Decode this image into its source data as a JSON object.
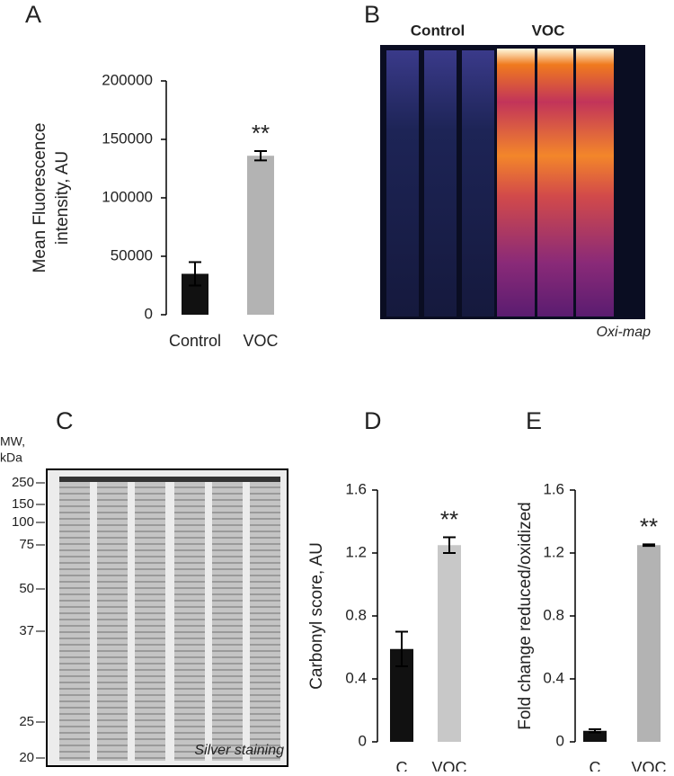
{
  "chart_data": [
    {
      "type": "bar",
      "panel": "A",
      "y_label": [
        "Mean Fluorescence",
        "intensity, AU"
      ],
      "categories": [
        "Control",
        "VOC"
      ],
      "values": [
        35000,
        136000
      ],
      "errors": [
        10000,
        4000
      ],
      "colors": [
        "#111111",
        "#b3b3b3"
      ],
      "annotations": [
        null,
        "**"
      ],
      "ylim": [
        0,
        200000
      ],
      "yticks": [
        0,
        50000,
        100000,
        150000,
        200000
      ]
    },
    {
      "type": "bar",
      "panel": "D",
      "y_label": [
        "Carbonyl score, AU"
      ],
      "categories": [
        "C",
        "VOC"
      ],
      "values": [
        0.59,
        1.25
      ],
      "errors": [
        0.11,
        0.05
      ],
      "colors": [
        "#111111",
        "#c8c8c8"
      ],
      "annotations": [
        null,
        "**"
      ],
      "ylim": [
        0,
        1.6
      ],
      "yticks": [
        0,
        0.4,
        0.8,
        1.2,
        1.6
      ]
    },
    {
      "type": "bar",
      "panel": "E",
      "y_label": [
        "Fold change reduced/oxidized"
      ],
      "categories": [
        "C",
        "VOC"
      ],
      "values": [
        0.07,
        1.25
      ],
      "errors": [
        0.01,
        0.005
      ],
      "colors": [
        "#111111",
        "#b3b3b3"
      ],
      "annotations": [
        null,
        "**"
      ],
      "ylim": [
        0,
        1.6
      ],
      "yticks": [
        0,
        0.4,
        0.8,
        1.2,
        1.6
      ]
    }
  ],
  "panel_b": {
    "panel": "B",
    "lanes": [
      "Control",
      "VOC"
    ],
    "caption": "Oxi-map"
  },
  "panel_c": {
    "panel": "C",
    "mw_label": [
      "MW,",
      "kDa"
    ],
    "markers": [
      250,
      150,
      100,
      75,
      50,
      37,
      25,
      20
    ],
    "caption": "Silver staining"
  }
}
